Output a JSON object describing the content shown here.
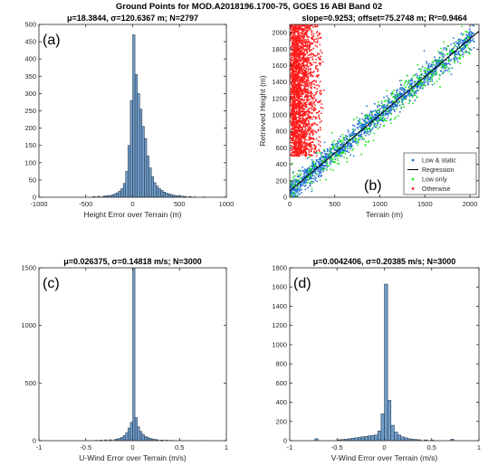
{
  "figure": {
    "suptitle": "Ground Points for MOD.A2018196.1700-75, GOES 16 ABI Band 02"
  },
  "colors": {
    "bar_fill": "#6f9cc9",
    "bar_edge": "#1f2f3f",
    "low_static": "#1f6fd0",
    "low_only": "#19e619",
    "otherwise": "#ff1a1a",
    "regression": "#000000"
  },
  "chart_data": [
    {
      "id": "a",
      "panel_label": "(a)",
      "type": "bar",
      "title": "μ=18.3844, σ=120.6367 m; N=2797",
      "xlabel": "Height Error over Terrain (m)",
      "ylabel": "",
      "xlim": [
        -1000,
        1000
      ],
      "ylim": [
        0,
        500
      ],
      "xticks": [
        -1000,
        -500,
        0,
        500,
        1000
      ],
      "yticks": [
        0,
        50,
        100,
        150,
        200,
        250,
        300,
        350,
        400,
        450,
        500
      ],
      "bin_width": 25,
      "bins": [
        [
          -425,
          2
        ],
        [
          -375,
          3
        ],
        [
          -325,
          3
        ],
        [
          -300,
          4
        ],
        [
          -275,
          5
        ],
        [
          -250,
          5
        ],
        [
          -225,
          7
        ],
        [
          -200,
          10
        ],
        [
          -175,
          13
        ],
        [
          -150,
          18
        ],
        [
          -125,
          25
        ],
        [
          -100,
          40
        ],
        [
          -75,
          75
        ],
        [
          -50,
          150
        ],
        [
          -25,
          280
        ],
        [
          0,
          470
        ],
        [
          25,
          355
        ],
        [
          50,
          300
        ],
        [
          75,
          255
        ],
        [
          100,
          205
        ],
        [
          125,
          170
        ],
        [
          150,
          120
        ],
        [
          175,
          85
        ],
        [
          200,
          60
        ],
        [
          225,
          42
        ],
        [
          250,
          32
        ],
        [
          275,
          25
        ],
        [
          300,
          20
        ],
        [
          325,
          15
        ],
        [
          350,
          12
        ],
        [
          375,
          10
        ],
        [
          400,
          8
        ],
        [
          425,
          6
        ],
        [
          450,
          5
        ],
        [
          475,
          4
        ],
        [
          500,
          3
        ],
        [
          525,
          3
        ],
        [
          550,
          2
        ],
        [
          600,
          2
        ],
        [
          650,
          1
        ],
        [
          750,
          1
        ]
      ]
    },
    {
      "id": "b",
      "panel_label": "(b)",
      "type": "scatter",
      "title": "slope=0.9253; offset=75.2748 m; R²=0.9464",
      "xlabel": "Terrain (m)",
      "ylabel": "Retrieved Height (m)",
      "xlim": [
        0,
        2100
      ],
      "ylim": [
        0,
        2100
      ],
      "xticks": [
        0,
        500,
        1000,
        1500,
        2000
      ],
      "yticks": [
        0,
        200,
        400,
        600,
        800,
        1000,
        1200,
        1400,
        1600,
        1800,
        2000
      ],
      "regression": {
        "slope": 0.9253,
        "offset": 75.2748
      },
      "legend_position": "bottom-right",
      "series": [
        {
          "name": "Low & static",
          "marker": "dot"
        },
        {
          "name": "Regression",
          "marker": "line"
        },
        {
          "name": "Low only",
          "marker": "dot"
        },
        {
          "name": "Otherwise",
          "marker": "dot"
        }
      ]
    },
    {
      "id": "c",
      "panel_label": "(c)",
      "type": "bar",
      "title": "μ=0.026375, σ=0.14818 m/s; N=3000",
      "xlabel": "U-Wind Error over Terrain (m/s)",
      "ylabel": "",
      "xlim": [
        -1,
        1
      ],
      "ylim": [
        0,
        1500
      ],
      "xticks": [
        -1,
        -0.5,
        0,
        0.5,
        1
      ],
      "yticks": [
        0,
        500,
        1000,
        1500
      ],
      "bin_width": 0.025,
      "bins": [
        [
          -0.4,
          3
        ],
        [
          -0.35,
          5
        ],
        [
          -0.3,
          7
        ],
        [
          -0.25,
          8
        ],
        [
          -0.2,
          10
        ],
        [
          -0.175,
          15
        ],
        [
          -0.15,
          20
        ],
        [
          -0.125,
          30
        ],
        [
          -0.1,
          45
        ],
        [
          -0.075,
          70
        ],
        [
          -0.05,
          110
        ],
        [
          -0.025,
          160
        ],
        [
          0,
          1500
        ],
        [
          0.025,
          200
        ],
        [
          0.05,
          120
        ],
        [
          0.075,
          80
        ],
        [
          0.1,
          55
        ],
        [
          0.125,
          38
        ],
        [
          0.15,
          28
        ],
        [
          0.175,
          20
        ],
        [
          0.2,
          15
        ],
        [
          0.225,
          11
        ],
        [
          0.25,
          8
        ],
        [
          0.3,
          6
        ],
        [
          0.35,
          4
        ],
        [
          0.4,
          3
        ],
        [
          0.5,
          2
        ],
        [
          0.6,
          2
        ],
        [
          0.75,
          1
        ]
      ]
    },
    {
      "id": "d",
      "panel_label": "(d)",
      "type": "bar",
      "title": "μ=0.0042406, σ=0.20385 m/s; N=3000",
      "xlabel": "V-Wind Error over Terrain (m/s)",
      "ylabel": "",
      "xlim": [
        -1,
        1
      ],
      "ylim": [
        0,
        1800
      ],
      "xticks": [
        -1,
        -0.5,
        0,
        0.5,
        1
      ],
      "yticks": [
        0,
        200,
        400,
        600,
        800,
        1000,
        1200,
        1400,
        1600,
        1800
      ],
      "bin_width": 0.035,
      "bins": [
        [
          -0.735,
          20
        ],
        [
          -0.49,
          10
        ],
        [
          -0.455,
          12
        ],
        [
          -0.42,
          15
        ],
        [
          -0.385,
          20
        ],
        [
          -0.35,
          25
        ],
        [
          -0.315,
          30
        ],
        [
          -0.28,
          35
        ],
        [
          -0.245,
          40
        ],
        [
          -0.21,
          45
        ],
        [
          -0.175,
          50
        ],
        [
          -0.14,
          55
        ],
        [
          -0.105,
          60
        ],
        [
          -0.07,
          100
        ],
        [
          -0.035,
          280
        ],
        [
          0,
          1630
        ],
        [
          0.035,
          420
        ],
        [
          0.07,
          160
        ],
        [
          0.105,
          90
        ],
        [
          0.14,
          60
        ],
        [
          0.175,
          40
        ],
        [
          0.21,
          30
        ],
        [
          0.245,
          20
        ],
        [
          0.28,
          15
        ],
        [
          0.315,
          12
        ],
        [
          0.35,
          10
        ],
        [
          0.42,
          8
        ],
        [
          0.49,
          5
        ],
        [
          0.7,
          15
        ]
      ]
    }
  ]
}
